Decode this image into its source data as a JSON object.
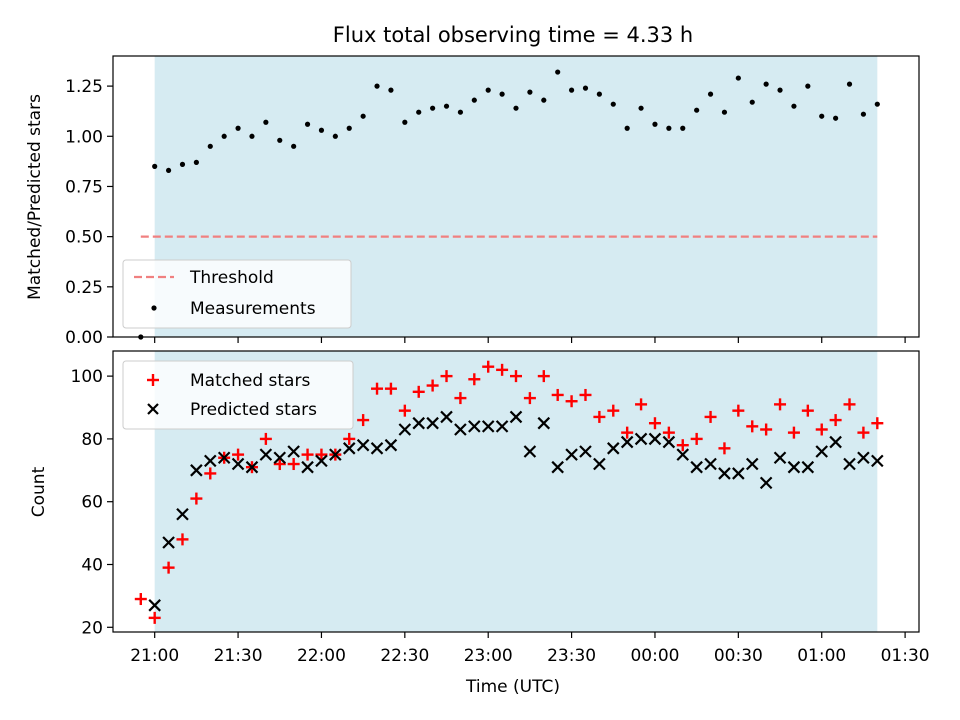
{
  "chart_data": [
    {
      "type": "scatter",
      "title": "Flux total observing time = 4.33 h",
      "xlabel": "",
      "ylabel": "Matched/Predicted stars",
      "ylim": [
        0,
        1.4
      ],
      "yticks": [
        "0.00",
        "0.25",
        "0.50",
        "0.75",
        "1.00",
        "1.25"
      ],
      "ytick_values": [
        0,
        0.25,
        0.5,
        0.75,
        1.0,
        1.25
      ],
      "shaded_region": {
        "from": "21:00",
        "to": "01:20",
        "color": "#add8e6"
      },
      "threshold": {
        "name": "Threshold",
        "value": 0.5,
        "from": "20:55",
        "to": "01:20",
        "color": "#f08080"
      },
      "series": [
        {
          "name": "Measurements",
          "color": "#000000",
          "marker": "dot",
          "points": [
            [
              "20:55",
              0.0
            ],
            [
              "21:00",
              0.85
            ],
            [
              "21:05",
              0.83
            ],
            [
              "21:10",
              0.86
            ],
            [
              "21:15",
              0.87
            ],
            [
              "21:20",
              0.95
            ],
            [
              "21:25",
              1.0
            ],
            [
              "21:30",
              1.04
            ],
            [
              "21:35",
              1.0
            ],
            [
              "21:40",
              1.07
            ],
            [
              "21:45",
              0.98
            ],
            [
              "21:50",
              0.95
            ],
            [
              "21:55",
              1.06
            ],
            [
              "22:00",
              1.03
            ],
            [
              "22:05",
              1.0
            ],
            [
              "22:10",
              1.04
            ],
            [
              "22:15",
              1.1
            ],
            [
              "22:20",
              1.25
            ],
            [
              "22:25",
              1.23
            ],
            [
              "22:30",
              1.07
            ],
            [
              "22:35",
              1.12
            ],
            [
              "22:40",
              1.14
            ],
            [
              "22:45",
              1.15
            ],
            [
              "22:50",
              1.12
            ],
            [
              "22:55",
              1.18
            ],
            [
              "23:00",
              1.23
            ],
            [
              "23:05",
              1.21
            ],
            [
              "23:10",
              1.14
            ],
            [
              "23:15",
              1.22
            ],
            [
              "23:20",
              1.18
            ],
            [
              "23:25",
              1.32
            ],
            [
              "23:30",
              1.23
            ],
            [
              "23:35",
              1.24
            ],
            [
              "23:40",
              1.21
            ],
            [
              "23:45",
              1.16
            ],
            [
              "23:50",
              1.04
            ],
            [
              "23:55",
              1.14
            ],
            [
              "00:00",
              1.06
            ],
            [
              "00:05",
              1.04
            ],
            [
              "00:10",
              1.04
            ],
            [
              "00:15",
              1.13
            ],
            [
              "00:20",
              1.21
            ],
            [
              "00:25",
              1.12
            ],
            [
              "00:30",
              1.29
            ],
            [
              "00:35",
              1.17
            ],
            [
              "00:40",
              1.26
            ],
            [
              "00:45",
              1.23
            ],
            [
              "00:50",
              1.15
            ],
            [
              "00:55",
              1.25
            ],
            [
              "01:00",
              1.1
            ],
            [
              "01:05",
              1.09
            ],
            [
              "01:10",
              1.26
            ],
            [
              "01:15",
              1.11
            ],
            [
              "01:20",
              1.16
            ]
          ]
        }
      ],
      "legend": {
        "placement": "lower-left",
        "entries": [
          "Threshold",
          "Measurements"
        ]
      },
      "grid": false
    },
    {
      "type": "scatter",
      "title": "",
      "xlabel": "Time (UTC)",
      "ylabel": "Count",
      "xlim": [
        "20:45",
        "01:35"
      ],
      "xticks": [
        "21:00",
        "21:30",
        "22:00",
        "22:30",
        "23:00",
        "23:30",
        "00:00",
        "00:30",
        "01:00",
        "01:30"
      ],
      "ylim": [
        18.5,
        108
      ],
      "yticks": [
        "20",
        "40",
        "60",
        "80",
        "100"
      ],
      "ytick_values": [
        20,
        40,
        60,
        80,
        100
      ],
      "shaded_region": {
        "from": "21:00",
        "to": "01:20",
        "color": "#add8e6"
      },
      "series": [
        {
          "name": "Matched stars",
          "color": "#ff0000",
          "marker": "plus",
          "points": [
            [
              "20:55",
              29
            ],
            [
              "21:00",
              23
            ],
            [
              "21:05",
              39
            ],
            [
              "21:10",
              48
            ],
            [
              "21:15",
              61
            ],
            [
              "21:20",
              69
            ],
            [
              "21:25",
              74
            ],
            [
              "21:30",
              75
            ],
            [
              "21:35",
              71
            ],
            [
              "21:40",
              80
            ],
            [
              "21:45",
              72
            ],
            [
              "21:50",
              72
            ],
            [
              "21:55",
              75
            ],
            [
              "22:00",
              75
            ],
            [
              "22:05",
              75
            ],
            [
              "22:10",
              80
            ],
            [
              "22:15",
              86
            ],
            [
              "22:20",
              96
            ],
            [
              "22:25",
              96
            ],
            [
              "22:30",
              89
            ],
            [
              "22:35",
              95
            ],
            [
              "22:40",
              97
            ],
            [
              "22:45",
              100
            ],
            [
              "22:50",
              93
            ],
            [
              "22:55",
              99
            ],
            [
              "23:00",
              103
            ],
            [
              "23:05",
              102
            ],
            [
              "23:10",
              100
            ],
            [
              "23:15",
              93
            ],
            [
              "23:20",
              100
            ],
            [
              "23:25",
              94
            ],
            [
              "23:30",
              92
            ],
            [
              "23:35",
              94
            ],
            [
              "23:40",
              87
            ],
            [
              "23:45",
              89
            ],
            [
              "23:50",
              82
            ],
            [
              "23:55",
              91
            ],
            [
              "00:00",
              85
            ],
            [
              "00:05",
              82
            ],
            [
              "00:10",
              78
            ],
            [
              "00:15",
              80
            ],
            [
              "00:20",
              87
            ],
            [
              "00:25",
              77
            ],
            [
              "00:30",
              89
            ],
            [
              "00:35",
              84
            ],
            [
              "00:40",
              83
            ],
            [
              "00:45",
              91
            ],
            [
              "00:50",
              82
            ],
            [
              "00:55",
              89
            ],
            [
              "01:00",
              83
            ],
            [
              "01:05",
              86
            ],
            [
              "01:10",
              91
            ],
            [
              "01:15",
              82
            ],
            [
              "01:20",
              85
            ]
          ]
        },
        {
          "name": "Predicted stars",
          "color": "#000000",
          "marker": "x",
          "points": [
            [
              "21:00",
              27
            ],
            [
              "21:05",
              47
            ],
            [
              "21:10",
              56
            ],
            [
              "21:15",
              70
            ],
            [
              "21:20",
              73
            ],
            [
              "21:25",
              74
            ],
            [
              "21:30",
              72
            ],
            [
              "21:35",
              71
            ],
            [
              "21:40",
              75
            ],
            [
              "21:45",
              74
            ],
            [
              "21:50",
              76
            ],
            [
              "21:55",
              71
            ],
            [
              "22:00",
              73
            ],
            [
              "22:05",
              75
            ],
            [
              "22:10",
              77
            ],
            [
              "22:15",
              78
            ],
            [
              "22:20",
              77
            ],
            [
              "22:25",
              78
            ],
            [
              "22:30",
              83
            ],
            [
              "22:35",
              85
            ],
            [
              "22:40",
              85
            ],
            [
              "22:45",
              87
            ],
            [
              "22:50",
              83
            ],
            [
              "22:55",
              84
            ],
            [
              "23:00",
              84
            ],
            [
              "23:05",
              84
            ],
            [
              "23:10",
              87
            ],
            [
              "23:15",
              76
            ],
            [
              "23:20",
              85
            ],
            [
              "23:25",
              71
            ],
            [
              "23:30",
              75
            ],
            [
              "23:35",
              76
            ],
            [
              "23:40",
              72
            ],
            [
              "23:45",
              77
            ],
            [
              "23:50",
              79
            ],
            [
              "23:55",
              80
            ],
            [
              "00:00",
              80
            ],
            [
              "00:05",
              79
            ],
            [
              "00:10",
              75
            ],
            [
              "00:15",
              71
            ],
            [
              "00:20",
              72
            ],
            [
              "00:25",
              69
            ],
            [
              "00:30",
              69
            ],
            [
              "00:35",
              72
            ],
            [
              "00:40",
              66
            ],
            [
              "00:45",
              74
            ],
            [
              "00:50",
              71
            ],
            [
              "00:55",
              71
            ],
            [
              "01:00",
              76
            ],
            [
              "01:05",
              79
            ],
            [
              "01:10",
              72
            ],
            [
              "01:15",
              74
            ],
            [
              "01:20",
              73
            ]
          ]
        }
      ],
      "legend": {
        "placement": "upper-left",
        "entries": [
          "Matched stars",
          "Predicted stars"
        ]
      },
      "grid": false
    }
  ]
}
